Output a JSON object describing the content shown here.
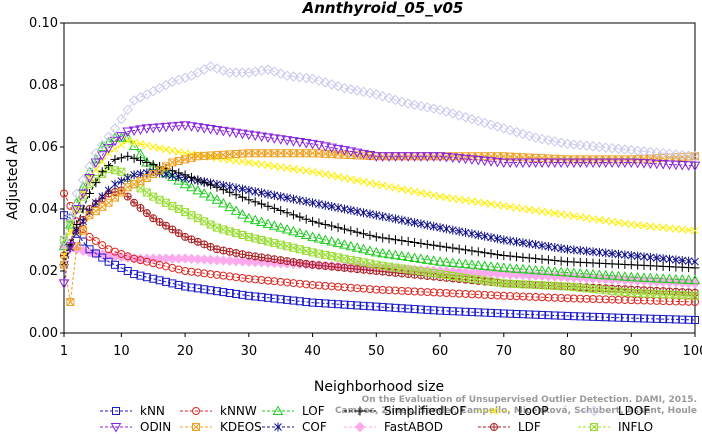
{
  "chart_data": {
    "type": "line",
    "title": "Annthyroid_05_v05",
    "xlabel": "Neighborhood size",
    "ylabel": "Adjusted AP",
    "xlim": [
      1,
      100
    ],
    "ylim": [
      0,
      0.1
    ],
    "xticks": [
      "1",
      "10",
      "20",
      "30",
      "40",
      "50",
      "60",
      "70",
      "80",
      "90",
      "100"
    ],
    "yticks": [
      "0.00",
      "0.02",
      "0.04",
      "0.06",
      "0.08",
      "0.10"
    ],
    "grid": false,
    "legend_position": "bottom",
    "watermark": [
      "Campos, Zimek, Sander, Campello, Micenková, Schubert, Assent, Houle",
      "On the Evaluation of Unsupervised Outlier Detection. DAMI, 2015."
    ],
    "series": [
      {
        "name": "kNN",
        "color": "#1a1acc",
        "marker": "square",
        "points": [
          [
            1,
            0.038
          ],
          [
            2,
            0.037
          ],
          [
            3,
            0.032
          ],
          [
            5,
            0.027
          ],
          [
            8,
            0.023
          ],
          [
            12,
            0.019
          ],
          [
            20,
            0.015
          ],
          [
            30,
            0.012
          ],
          [
            40,
            0.0098
          ],
          [
            50,
            0.0085
          ],
          [
            60,
            0.0072
          ],
          [
            70,
            0.0063
          ],
          [
            80,
            0.0055
          ],
          [
            90,
            0.0048
          ],
          [
            100,
            0.0042
          ]
        ]
      },
      {
        "name": "kNNW",
        "color": "#e0261f",
        "marker": "circle",
        "points": [
          [
            1,
            0.045
          ],
          [
            2,
            0.041
          ],
          [
            3,
            0.036
          ],
          [
            5,
            0.031
          ],
          [
            8,
            0.027
          ],
          [
            12,
            0.024
          ],
          [
            20,
            0.02
          ],
          [
            30,
            0.0175
          ],
          [
            40,
            0.0155
          ],
          [
            50,
            0.014
          ],
          [
            60,
            0.013
          ],
          [
            70,
            0.012
          ],
          [
            80,
            0.0112
          ],
          [
            90,
            0.0106
          ],
          [
            100,
            0.01
          ]
        ]
      },
      {
        "name": "LOF",
        "color": "#22cc22",
        "marker": "triangle",
        "points": [
          [
            1,
            0.028
          ],
          [
            3,
            0.042
          ],
          [
            5,
            0.052
          ],
          [
            7,
            0.06
          ],
          [
            9,
            0.063
          ],
          [
            11,
            0.063
          ],
          [
            14,
            0.055
          ],
          [
            20,
            0.048
          ],
          [
            25,
            0.043
          ],
          [
            30,
            0.037
          ],
          [
            40,
            0.031
          ],
          [
            50,
            0.026
          ],
          [
            60,
            0.023
          ],
          [
            70,
            0.021
          ],
          [
            80,
            0.0195
          ],
          [
            90,
            0.018
          ],
          [
            100,
            0.017
          ]
        ]
      },
      {
        "name": "SimplifiedLOF",
        "color": "#000000",
        "marker": "plus",
        "points": [
          [
            1,
            0.022
          ],
          [
            3,
            0.035
          ],
          [
            5,
            0.045
          ],
          [
            7,
            0.052
          ],
          [
            9,
            0.056
          ],
          [
            11,
            0.057
          ],
          [
            14,
            0.055
          ],
          [
            20,
            0.051
          ],
          [
            30,
            0.043
          ],
          [
            40,
            0.036
          ],
          [
            50,
            0.031
          ],
          [
            60,
            0.028
          ],
          [
            70,
            0.025
          ],
          [
            80,
            0.023
          ],
          [
            90,
            0.022
          ],
          [
            100,
            0.021
          ]
        ]
      },
      {
        "name": "LoOP",
        "color": "#ffee00",
        "marker": "x",
        "points": [
          [
            1,
            0.025
          ],
          [
            3,
            0.04
          ],
          [
            5,
            0.05
          ],
          [
            8,
            0.058
          ],
          [
            11,
            0.062
          ],
          [
            15,
            0.06
          ],
          [
            20,
            0.058
          ],
          [
            30,
            0.055
          ],
          [
            40,
            0.052
          ],
          [
            50,
            0.048
          ],
          [
            60,
            0.044
          ],
          [
            70,
            0.041
          ],
          [
            80,
            0.038
          ],
          [
            90,
            0.035
          ],
          [
            100,
            0.033
          ]
        ]
      },
      {
        "name": "LDOF",
        "color": "#c9c9ee",
        "marker": "diamond",
        "points": [
          [
            1,
            0.03
          ],
          [
            3,
            0.045
          ],
          [
            6,
            0.058
          ],
          [
            9,
            0.066
          ],
          [
            12,
            0.075
          ],
          [
            15,
            0.078
          ],
          [
            18,
            0.081
          ],
          [
            21,
            0.083
          ],
          [
            24,
            0.086
          ],
          [
            27,
            0.084
          ],
          [
            30,
            0.084
          ],
          [
            33,
            0.085
          ],
          [
            36,
            0.083
          ],
          [
            40,
            0.082
          ],
          [
            45,
            0.079
          ],
          [
            50,
            0.077
          ],
          [
            55,
            0.074
          ],
          [
            60,
            0.072
          ],
          [
            65,
            0.069
          ],
          [
            70,
            0.066
          ],
          [
            75,
            0.063
          ],
          [
            80,
            0.061
          ],
          [
            85,
            0.06
          ],
          [
            90,
            0.059
          ],
          [
            95,
            0.058
          ],
          [
            100,
            0.057
          ]
        ]
      },
      {
        "name": "ODIN",
        "color": "#8822dd",
        "marker": "triangle-down",
        "points": [
          [
            1,
            0.016
          ],
          [
            3,
            0.04
          ],
          [
            6,
            0.055
          ],
          [
            9,
            0.062
          ],
          [
            11,
            0.065
          ],
          [
            14,
            0.066
          ],
          [
            20,
            0.067
          ],
          [
            30,
            0.064
          ],
          [
            40,
            0.061
          ],
          [
            50,
            0.057
          ],
          [
            60,
            0.057
          ],
          [
            70,
            0.055
          ],
          [
            80,
            0.055
          ],
          [
            90,
            0.055
          ],
          [
            100,
            0.054
          ]
        ]
      },
      {
        "name": "KDEOS",
        "color": "#f0a020",
        "marker": "square-x",
        "points": [
          [
            1,
            0.022
          ],
          [
            2,
            0.01
          ],
          [
            3,
            0.028
          ],
          [
            5,
            0.038
          ],
          [
            8,
            0.042
          ],
          [
            11,
            0.047
          ],
          [
            14,
            0.05
          ],
          [
            18,
            0.055
          ],
          [
            22,
            0.057
          ],
          [
            30,
            0.058
          ],
          [
            40,
            0.058
          ],
          [
            50,
            0.057
          ],
          [
            60,
            0.057
          ],
          [
            70,
            0.057
          ],
          [
            80,
            0.056
          ],
          [
            90,
            0.056
          ],
          [
            100,
            0.057
          ]
        ]
      },
      {
        "name": "COF",
        "color": "#11118a",
        "marker": "asterisk",
        "points": [
          [
            1,
            0.022
          ],
          [
            3,
            0.033
          ],
          [
            6,
            0.042
          ],
          [
            9,
            0.048
          ],
          [
            12,
            0.051
          ],
          [
            15,
            0.052
          ],
          [
            20,
            0.05
          ],
          [
            30,
            0.046
          ],
          [
            40,
            0.042
          ],
          [
            50,
            0.038
          ],
          [
            60,
            0.034
          ],
          [
            70,
            0.03
          ],
          [
            80,
            0.027
          ],
          [
            90,
            0.025
          ],
          [
            100,
            0.023
          ]
        ]
      },
      {
        "name": "FastABOD",
        "color": "#ffaaee",
        "marker": "diamond-filled",
        "points": [
          [
            1,
            0.028
          ],
          [
            3,
            0.027
          ],
          [
            5,
            0.026
          ],
          [
            8,
            0.025
          ],
          [
            12,
            0.024
          ],
          [
            20,
            0.024
          ],
          [
            30,
            0.023
          ],
          [
            40,
            0.022
          ],
          [
            50,
            0.021
          ],
          [
            60,
            0.02
          ],
          [
            70,
            0.019
          ],
          [
            80,
            0.018
          ],
          [
            90,
            0.017
          ],
          [
            100,
            0.016
          ]
        ]
      },
      {
        "name": "LDF",
        "color": "#aa2222",
        "marker": "circle-plus",
        "points": [
          [
            1,
            0.025
          ],
          [
            3,
            0.033
          ],
          [
            5,
            0.04
          ],
          [
            8,
            0.045
          ],
          [
            10,
            0.046
          ],
          [
            12,
            0.042
          ],
          [
            15,
            0.037
          ],
          [
            20,
            0.031
          ],
          [
            25,
            0.027
          ],
          [
            30,
            0.025
          ],
          [
            40,
            0.022
          ],
          [
            50,
            0.02
          ],
          [
            60,
            0.018
          ],
          [
            70,
            0.016
          ],
          [
            80,
            0.015
          ],
          [
            90,
            0.014
          ],
          [
            100,
            0.013
          ]
        ]
      },
      {
        "name": "INFLO",
        "color": "#99dd33",
        "marker": "square-x",
        "points": [
          [
            1,
            0.03
          ],
          [
            3,
            0.04
          ],
          [
            5,
            0.048
          ],
          [
            8,
            0.053
          ],
          [
            10,
            0.052
          ],
          [
            12,
            0.048
          ],
          [
            15,
            0.044
          ],
          [
            20,
            0.039
          ],
          [
            25,
            0.034
          ],
          [
            30,
            0.031
          ],
          [
            40,
            0.026
          ],
          [
            50,
            0.022
          ],
          [
            60,
            0.019
          ],
          [
            70,
            0.016
          ],
          [
            80,
            0.015
          ],
          [
            90,
            0.013
          ],
          [
            100,
            0.012
          ]
        ]
      }
    ],
    "legend_rows": [
      [
        "kNN",
        "kNNW",
        "LOF",
        "SimplifiedLOF",
        "LoOP",
        "LDOF"
      ],
      [
        "ODIN",
        "KDEOS",
        "COF",
        "FastABOD",
        "LDF",
        "INFLO"
      ]
    ]
  }
}
